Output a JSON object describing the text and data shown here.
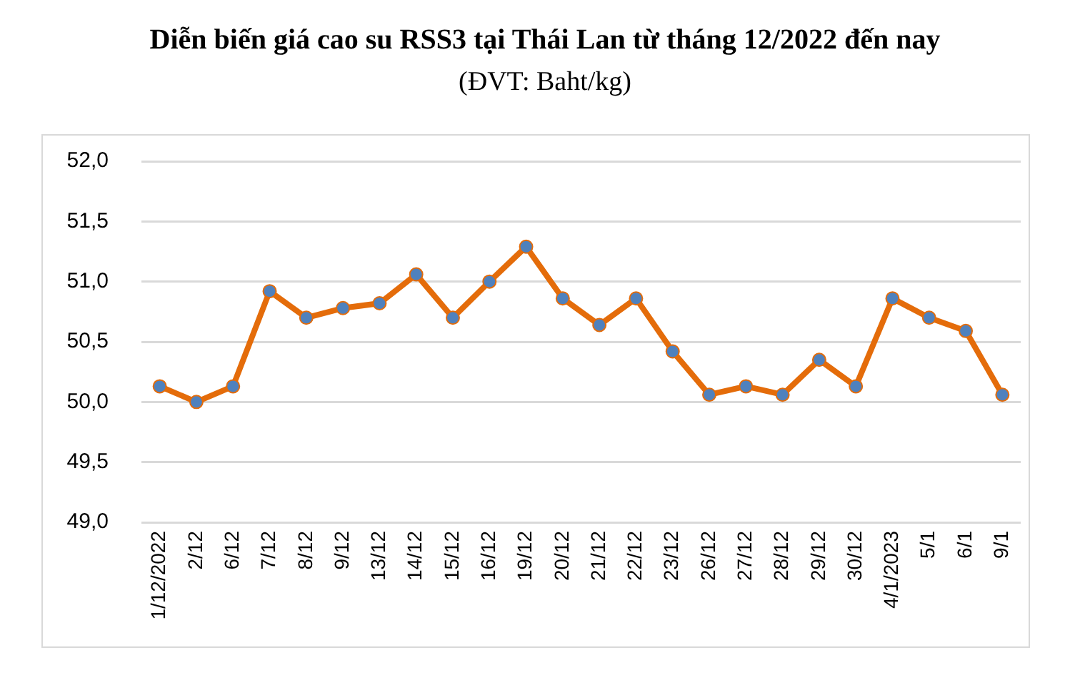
{
  "chart_data": {
    "type": "line",
    "title": "Diễn biến giá cao su RSS3 tại Thái Lan từ tháng 12/2022 đến nay",
    "subtitle": "(ĐVT: Baht/kg)",
    "categories": [
      "1/12/2022",
      "2/12",
      "6/12",
      "7/12",
      "8/12",
      "9/12",
      "13/12",
      "14/12",
      "15/12",
      "16/12",
      "19/12",
      "20/12",
      "21/12",
      "22/12",
      "23/12",
      "26/12",
      "27/12",
      "28/12",
      "29/12",
      "30/12",
      "4/1/2023",
      "5/1",
      "6/1",
      "9/1"
    ],
    "series": [
      {
        "color": "#e46c0a",
        "values": [
          50.13,
          50.0,
          50.13,
          50.92,
          50.7,
          50.78,
          50.82,
          51.06,
          50.7,
          51.0,
          51.29,
          50.86,
          50.64,
          50.86,
          50.42,
          50.06,
          50.13,
          50.06,
          50.35,
          50.13,
          50.86,
          50.7,
          50.59,
          50.06
        ]
      }
    ],
    "ylim": [
      49,
      52
    ],
    "yticks": [
      {
        "value": 49,
        "label": "49,0"
      },
      {
        "value": 49.5,
        "label": "49,5"
      },
      {
        "value": 50,
        "label": "50,0"
      },
      {
        "value": 50.5,
        "label": "50,5"
      },
      {
        "value": 51,
        "label": "51,0"
      },
      {
        "value": 51.5,
        "label": "51,5"
      },
      {
        "value": 52,
        "label": "52,0"
      }
    ],
    "grid": "y",
    "legend": false,
    "marker": "circle",
    "line_style": "solid"
  }
}
